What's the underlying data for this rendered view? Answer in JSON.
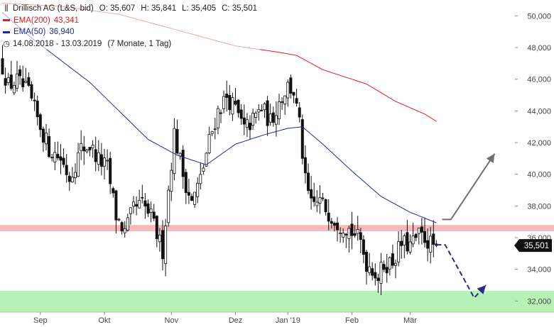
{
  "legend": {
    "title": "Drillisch AG (L&S, bid)",
    "open": "O: 35,607",
    "high": "H: 35,841",
    "low": "L: 35,405",
    "close": "C: 35,501",
    "ema200_label": "EMA(200)",
    "ema200_value": "43,341",
    "ema50_label": "EMA(50)",
    "ema50_value": "36,940",
    "period": "14.08.2018 - 13.03.2019",
    "period_note": "(7 Monate, 1 Tag)",
    "icons": {
      "candle": "candlestick-icon",
      "clock": "clock-icon"
    }
  },
  "colors": {
    "ema200": "#e0201c",
    "ema50": "#20289a",
    "candle_up": "#ffffff",
    "candle_down": "#111111",
    "resistance_zone": "#f7b9b9",
    "support_zone": "#b6f2b6",
    "forecast_up": "#707070",
    "forecast_down": "#2a2a8c",
    "price_tag_bg": "#111111"
  },
  "chart_data": {
    "type": "candlestick",
    "ylim": [
      31.3,
      51.0
    ],
    "yticks": [
      {
        "value": 32,
        "label": "32,000"
      },
      {
        "value": 34,
        "label": "34,000"
      },
      {
        "value": 36,
        "label": "36,000"
      },
      {
        "value": 38,
        "label": "38,000"
      },
      {
        "value": 40,
        "label": "40,000"
      },
      {
        "value": 42,
        "label": "42,000"
      },
      {
        "value": 44,
        "label": "44,000"
      },
      {
        "value": 46,
        "label": "46,000"
      },
      {
        "value": 48,
        "label": "48,000"
      },
      {
        "value": 50,
        "label": "50,000"
      }
    ],
    "xticks": [
      {
        "index": 13,
        "label": "Sep"
      },
      {
        "index": 35,
        "label": "Okt"
      },
      {
        "index": 58,
        "label": "Nov"
      },
      {
        "index": 80,
        "label": "Dez"
      },
      {
        "index": 98,
        "label": "Jan '19"
      },
      {
        "index": 120,
        "label": "Feb"
      },
      {
        "index": 140,
        "label": "Mär"
      }
    ],
    "close_waypoints": [
      [
        0,
        46.8
      ],
      [
        2,
        45.6
      ],
      [
        5,
        45.9
      ],
      [
        9,
        45.1
      ],
      [
        12,
        43.5
      ],
      [
        16,
        41.6
      ],
      [
        20,
        41.0
      ],
      [
        23,
        39.8
      ],
      [
        27,
        41.6
      ],
      [
        30,
        41.8
      ],
      [
        33,
        40.9
      ],
      [
        36,
        40.4
      ],
      [
        39,
        37.4
      ],
      [
        42,
        36.3
      ],
      [
        45,
        37.8
      ],
      [
        48,
        38.1
      ],
      [
        51,
        37.3
      ],
      [
        53,
        36.2
      ],
      [
        55,
        35.2
      ],
      [
        57,
        39.0
      ],
      [
        59,
        42.6
      ],
      [
        62,
        40.0
      ],
      [
        65,
        38.2
      ],
      [
        68,
        39.7
      ],
      [
        71,
        42.1
      ],
      [
        74,
        44.0
      ],
      [
        77,
        44.9
      ],
      [
        80,
        44.1
      ],
      [
        83,
        42.8
      ],
      [
        86,
        43.4
      ],
      [
        89,
        44.2
      ],
      [
        92,
        43.3
      ],
      [
        95,
        44.6
      ],
      [
        98,
        45.6
      ],
      [
        100,
        45.2
      ],
      [
        102,
        43.1
      ],
      [
        104,
        39.5
      ],
      [
        106,
        38.0
      ],
      [
        109,
        38.3
      ],
      [
        112,
        37.6
      ],
      [
        115,
        37.0
      ],
      [
        118,
        36.7
      ],
      [
        121,
        36.2
      ],
      [
        123,
        35.7
      ],
      [
        125,
        34.4
      ],
      [
        127,
        34.1
      ],
      [
        129,
        33.5
      ],
      [
        131,
        34.3
      ],
      [
        134,
        34.5
      ],
      [
        137,
        35.6
      ],
      [
        140,
        35.5
      ],
      [
        143,
        36.1
      ],
      [
        145,
        36.0
      ],
      [
        147,
        35.6
      ],
      [
        149,
        35.5
      ]
    ],
    "series": [
      {
        "name": "EMA(200)",
        "waypoints": [
          [
            0,
            50.8
          ],
          [
            20,
            50.6
          ],
          [
            40,
            50.1
          ],
          [
            60,
            49.1
          ],
          [
            80,
            48.1
          ],
          [
            95,
            47.7
          ],
          [
            101,
            47.5
          ],
          [
            110,
            46.6
          ],
          [
            125,
            45.7
          ],
          [
            135,
            44.6
          ],
          [
            145,
            43.8
          ],
          [
            149,
            43.34
          ]
        ]
      },
      {
        "name": "EMA(50)",
        "waypoints": [
          [
            0,
            50.2
          ],
          [
            10,
            48.6
          ],
          [
            20,
            47.2
          ],
          [
            30,
            45.8
          ],
          [
            40,
            44.0
          ],
          [
            50,
            42.2
          ],
          [
            60,
            41.2
          ],
          [
            70,
            40.6
          ],
          [
            80,
            41.9
          ],
          [
            90,
            42.5
          ],
          [
            98,
            42.9
          ],
          [
            103,
            43.0
          ],
          [
            110,
            41.9
          ],
          [
            120,
            40.2
          ],
          [
            130,
            38.6
          ],
          [
            140,
            37.6
          ],
          [
            149,
            36.94
          ]
        ]
      }
    ],
    "zones": [
      {
        "name": "resistance",
        "ymin": 36.4,
        "ymax": 36.8
      },
      {
        "name": "support",
        "ymin": 31.3,
        "ymax": 32.65
      }
    ],
    "forecast": {
      "up": [
        [
          151,
          37.15
        ],
        [
          154,
          37.15
        ],
        [
          169,
          41.3
        ]
      ],
      "down": [
        [
          149,
          35.55
        ],
        [
          152,
          35.55
        ],
        [
          162,
          32.2
        ],
        [
          166,
          33.0
        ]
      ]
    },
    "last_price": {
      "value": 35.501,
      "label": "35,501"
    }
  }
}
